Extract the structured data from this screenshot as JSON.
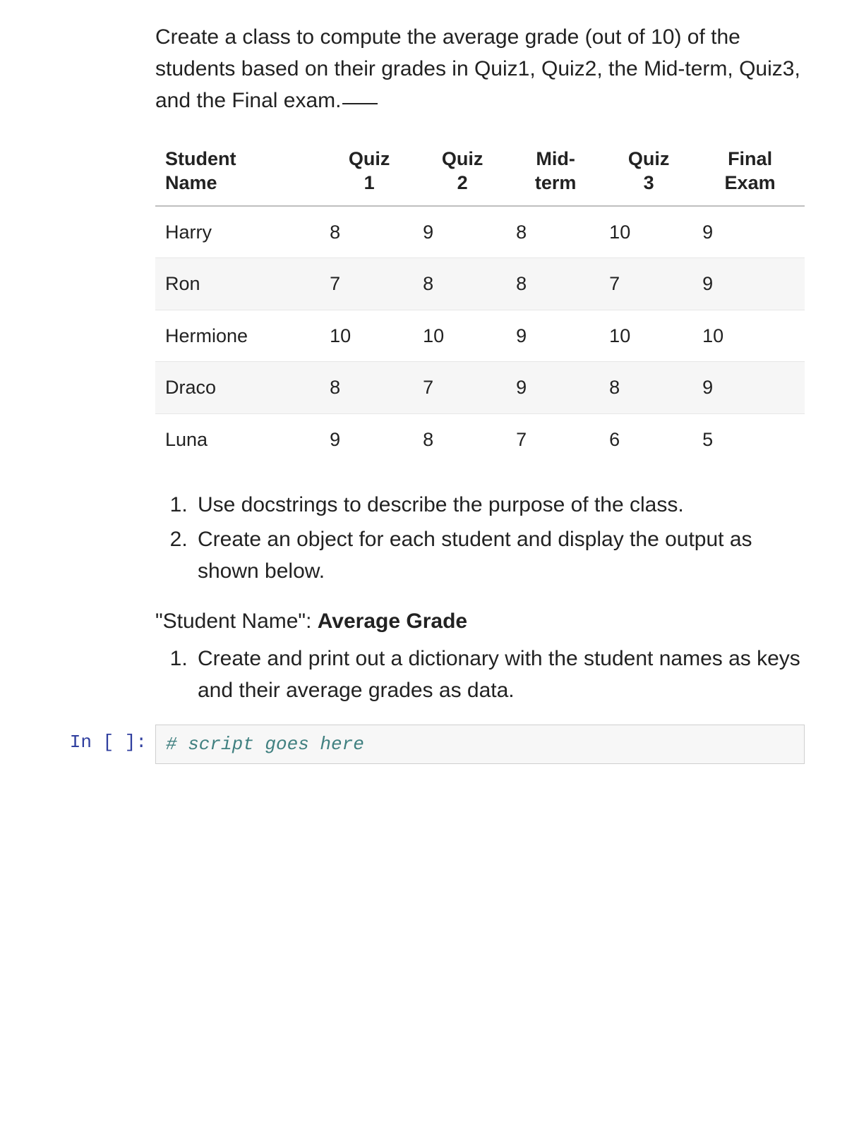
{
  "task": {
    "description": "Create a class to compute the average grade (out of 10) of the students based on their grades in Quiz1, Quiz2, the Mid-term, Quiz3, and the Final exam."
  },
  "grades_table": {
    "headers": [
      "Student Name",
      "Quiz 1",
      "Quiz 2",
      "Mid-term",
      "Quiz 3",
      "Final Exam"
    ],
    "header_lines": [
      [
        "Student",
        "Name"
      ],
      [
        "Quiz",
        "1"
      ],
      [
        "Quiz",
        "2"
      ],
      [
        "Mid-",
        "term"
      ],
      [
        "Quiz",
        "3"
      ],
      [
        "Final",
        "Exam"
      ]
    ],
    "rows": [
      {
        "name": "Harry",
        "q1": "8",
        "q2": "9",
        "mid": "8",
        "q3": "10",
        "final": "9"
      },
      {
        "name": "Ron",
        "q1": "7",
        "q2": "8",
        "mid": "8",
        "q3": "7",
        "final": "9"
      },
      {
        "name": "Hermione",
        "q1": "10",
        "q2": "10",
        "mid": "9",
        "q3": "10",
        "final": "10"
      },
      {
        "name": "Draco",
        "q1": "8",
        "q2": "7",
        "mid": "9",
        "q3": "8",
        "final": "9"
      },
      {
        "name": "Luna",
        "q1": "9",
        "q2": "8",
        "mid": "7",
        "q3": "6",
        "final": "5"
      }
    ]
  },
  "requirements_a": [
    "Use docstrings to describe the purpose of the class.",
    "Create an object for each student and display the output as shown below."
  ],
  "output_format": {
    "prefix": "\"Student Name\": ",
    "bold": "Average Grade"
  },
  "requirements_b": [
    "Create and print out a dictionary with the student names as keys and their average grades as data."
  ],
  "code_cell": {
    "prompt": "In [ ]:",
    "content": "# script goes here"
  },
  "style": {
    "header_border": "#bfbfbf",
    "row_stripe": "#f6f6f6",
    "code_bg": "#f7f7f7",
    "code_border": "#cfcfcf",
    "comment_color": "#408080",
    "prompt_color": "#303f9f"
  }
}
